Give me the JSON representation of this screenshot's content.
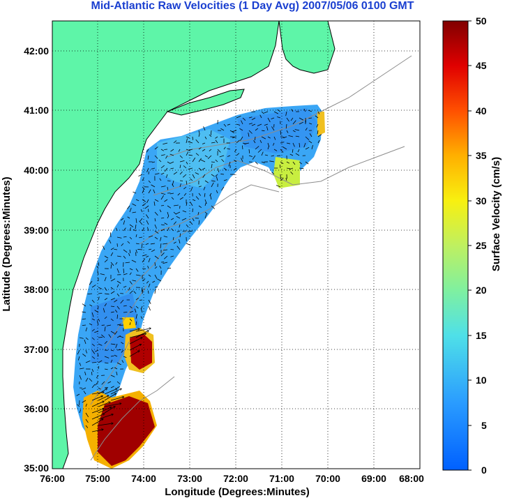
{
  "title": "Mid-Atlantic Raw Velocities (1 Day Avg) 2007/05/06 0100 GMT",
  "map": {
    "x_axis_label": "Longitude (Degrees:Minutes)",
    "y_axis_label": "Latitude (Degrees:Minutes)",
    "lon_ticks": [
      "76:00",
      "75:00",
      "74:00",
      "73:00",
      "72:00",
      "71:00",
      "70:00",
      "69:00",
      "68:00"
    ],
    "lat_ticks": [
      "42:00",
      "41:00",
      "40:00",
      "39:00",
      "38:00",
      "37:00",
      "36:00",
      "35:00"
    ],
    "land_color": "#5ef5a8",
    "ocean_color": "#ffffff",
    "grid": "dotted"
  },
  "colorbar": {
    "label": "Surface Velocity (cm/s)",
    "ticks": [
      "50",
      "45",
      "40",
      "35",
      "30",
      "25",
      "20",
      "15",
      "10",
      "5",
      "0"
    ],
    "min": 0,
    "max": 50,
    "colormap": "jet"
  }
}
